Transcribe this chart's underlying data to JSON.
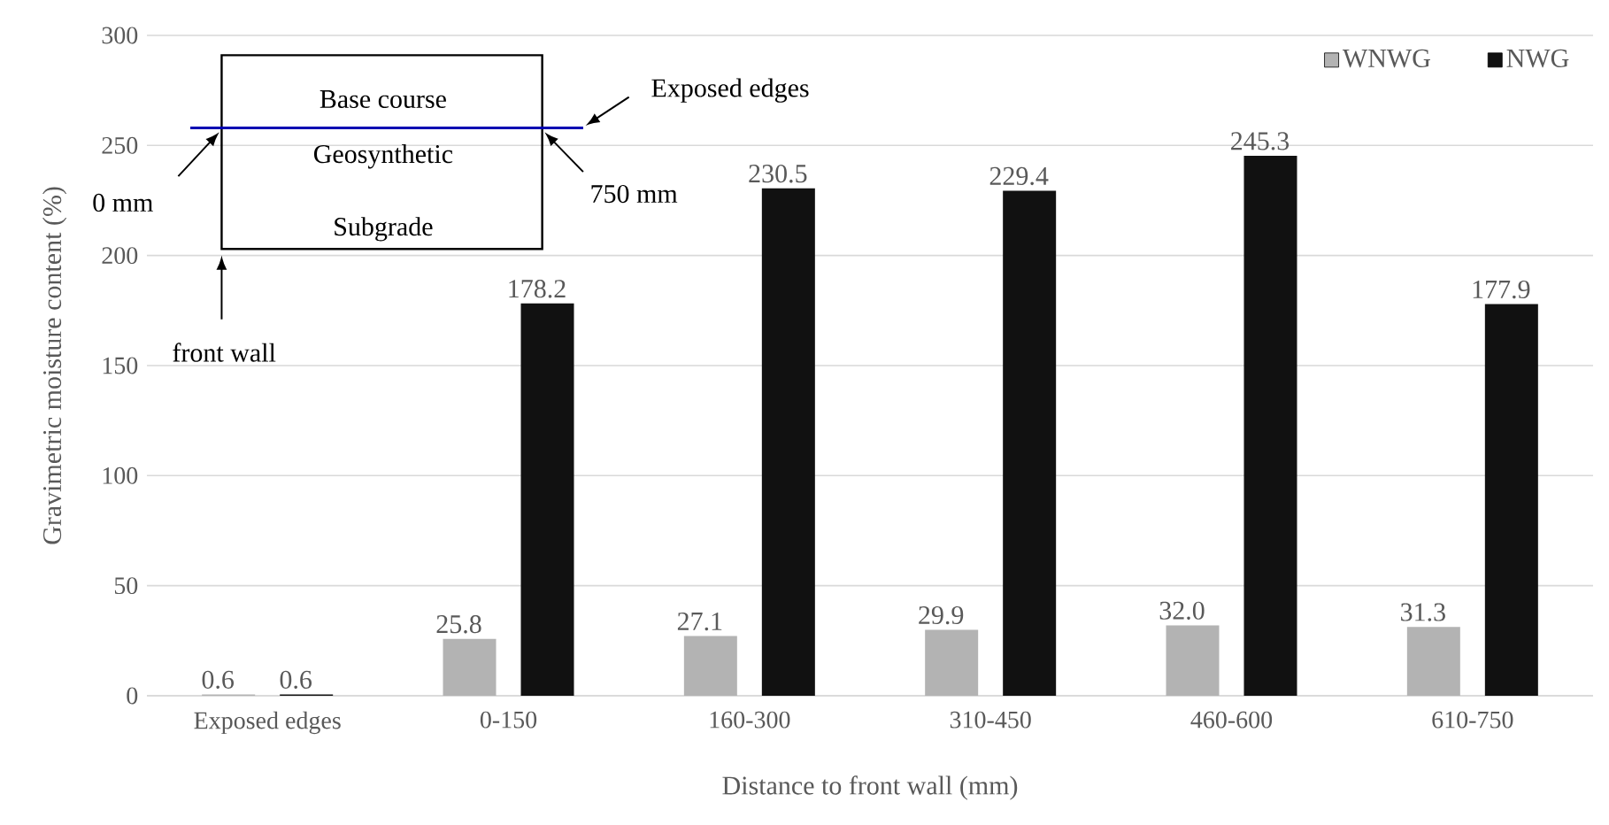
{
  "chart_data": {
    "type": "bar",
    "xlabel": "Distance to front wall (mm)",
    "ylabel": "Gravimetric moisture content (%)",
    "categories": [
      "Exposed edges",
      "0-150",
      "160-300",
      "310-450",
      "460-600",
      "610-750"
    ],
    "series": [
      {
        "name": "WNWG",
        "color": "#b3b3b3",
        "values": [
          0.6,
          25.8,
          27.1,
          29.9,
          32,
          31.3
        ],
        "value_labels": [
          "0.6",
          "25.8",
          "27.1",
          "29.9",
          "32.0",
          "31.3"
        ]
      },
      {
        "name": "NWG",
        "color": "#111111",
        "values": [
          0.6,
          178.2,
          230.5,
          229.4,
          245.3,
          177.9
        ],
        "value_labels": [
          "0.6",
          "178.2",
          "230.5",
          "229.4",
          "245.3",
          "177.9"
        ]
      }
    ],
    "ylim": [
      0,
      300
    ],
    "yticks": [
      0,
      50,
      100,
      150,
      200,
      250,
      300
    ],
    "grid": "y",
    "legend": "top right",
    "annotations": [
      "Base course",
      "Geosynthetic",
      "Subgrade",
      "Exposed edges",
      "0 mm",
      "750 mm",
      "front wall"
    ]
  }
}
